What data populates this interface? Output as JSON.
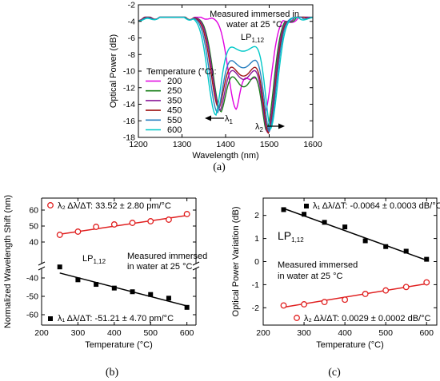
{
  "panels": [
    {
      "id": "a",
      "label": "(a)"
    },
    {
      "id": "b",
      "label": "(b)"
    },
    {
      "id": "c",
      "label": "(c)"
    }
  ],
  "chart_data": [
    {
      "id": "a",
      "type": "line",
      "xlabel": "Wavelength (nm)",
      "ylabel": "Optical Power (dB)",
      "xlim": [
        1200,
        1600
      ],
      "ylim": [
        -18,
        -2
      ],
      "xticks": [
        1200,
        1300,
        1400,
        1500,
        1600
      ],
      "yticks": [
        -2,
        -4,
        -6,
        -8,
        -10,
        -12,
        -14,
        -16,
        -18
      ],
      "legend_title": "Temperature (°C):",
      "legend_placement": "left",
      "annotations": {
        "measure_1": "Measured immersed in",
        "measure_2": "water at 25 °C",
        "mode": "LP",
        "mode_sub": "1,12",
        "lambda1": "λ",
        "lambda1_sub": "1",
        "lambda2": "λ",
        "lambda2_sub": "2"
      },
      "series": [
        {
          "name": "200",
          "color": "#e000e0",
          "dip1": [
            1425,
            -14.6
          ],
          "peak": [
            1455,
            -11.0
          ],
          "dip2": [
            1488,
            -15.2
          ],
          "bands": [
            [
              1220,
              -3.1
            ],
            [
              1265,
              -2.9
            ],
            [
              1300,
              -3.3
            ],
            [
              1335,
              -3.0
            ],
            [
              1580,
              -2.5
            ]
          ]
        },
        {
          "name": "250",
          "color": "#1a7f1a",
          "dip1": [
            1390,
            -14.9
          ],
          "peak": [
            1430,
            -11.9
          ],
          "dip2": [
            1493,
            -17.2
          ],
          "bands": [
            [
              1220,
              -3.0
            ],
            [
              1265,
              -3.0
            ],
            [
              1300,
              -3.2
            ],
            [
              1335,
              -3.1
            ],
            [
              1575,
              -2.5
            ]
          ]
        },
        {
          "name": "350",
          "color": "#8a1a9a",
          "dip1": [
            1388,
            -14.7
          ],
          "peak": [
            1440,
            -11.0
          ],
          "dip2": [
            1495,
            -17.4
          ],
          "bands": [
            [
              1220,
              -3.0
            ],
            [
              1265,
              -2.9
            ],
            [
              1300,
              -3.3
            ],
            [
              1335,
              -3.0
            ],
            [
              1570,
              -2.6
            ]
          ]
        },
        {
          "name": "450",
          "color": "#a01818",
          "dip1": [
            1385,
            -14.5
          ],
          "peak": [
            1442,
            -10.6
          ],
          "dip2": [
            1497,
            -17.5
          ],
          "bands": [
            [
              1220,
              -3.1
            ],
            [
              1265,
              -2.9
            ],
            [
              1300,
              -3.2
            ],
            [
              1335,
              -3.0
            ],
            [
              1565,
              -2.6
            ]
          ]
        },
        {
          "name": "550",
          "color": "#2a80c0",
          "dip1": [
            1382,
            -15.0
          ],
          "peak": [
            1448,
            -9.6
          ],
          "dip2": [
            1499,
            -17.3
          ],
          "bands": [
            [
              1220,
              -3.2
            ],
            [
              1265,
              -3.0
            ],
            [
              1300,
              -3.3
            ],
            [
              1335,
              -3.1
            ],
            [
              1560,
              -2.6
            ]
          ]
        },
        {
          "name": "600",
          "color": "#00c8c8",
          "dip1": [
            1378,
            -15.3
          ],
          "peak": [
            1452,
            -7.6
          ],
          "dip2": [
            1502,
            -17.0
          ],
          "bands": [
            [
              1220,
              -3.3
            ],
            [
              1265,
              -3.0
            ],
            [
              1300,
              -3.4
            ],
            [
              1335,
              -3.1
            ],
            [
              1555,
              -2.7
            ]
          ]
        }
      ]
    },
    {
      "id": "b",
      "type": "scatter",
      "xlabel": "Temperature (°C)",
      "ylabel": "Normalized Wavelength Shift (nm)",
      "xlim": [
        200,
        625
      ],
      "xticks": [
        200,
        300,
        400,
        500,
        600
      ],
      "ylim_upper": [
        40,
        65
      ],
      "yticks_upper": [
        40,
        50,
        60
      ],
      "ylim_lower": [
        -60,
        -30
      ],
      "yticks_lower": [
        -60,
        -50,
        -40
      ],
      "annotations": {
        "mode": "LP",
        "mode_sub": "1,12",
        "measure_1": "Measured immersed",
        "measure_2": "in water at 25 °C"
      },
      "series": [
        {
          "name": "λ₂ Δλ/ΔT: 33.52 ± 2.80 pm/°C",
          "legend_placement": "top-left",
          "marker": "circle-open",
          "color": "#e02020",
          "x": [
            250,
            300,
            350,
            400,
            450,
            500,
            550,
            600
          ],
          "y": [
            44.5,
            46.5,
            49.5,
            51,
            52,
            53,
            54,
            57.5
          ],
          "fit": {
            "slope": 0.03352,
            "intercept": 36.5
          }
        },
        {
          "name": "λ₁ Δλ/ΔT: -51.21 ± 4.70 pm/°C",
          "legend_placement": "bottom-left",
          "marker": "square-filled",
          "color": "#000000",
          "x": [
            250,
            300,
            350,
            400,
            450,
            500,
            550,
            600
          ],
          "y": [
            -34,
            -41,
            -43.5,
            -45.5,
            -47.5,
            -49,
            -51,
            -56
          ],
          "fit": {
            "slope": -0.05121,
            "intercept": -24.5
          }
        }
      ]
    },
    {
      "id": "c",
      "type": "scatter",
      "xlabel": "Temperature (°C)",
      "ylabel": "Optical Power Variation (dB)",
      "xlim": [
        200,
        625
      ],
      "xticks": [
        200,
        300,
        400,
        500,
        600
      ],
      "ylim": [
        -2.75,
        2.75
      ],
      "yticks": [
        -2,
        -1,
        0,
        1,
        2
      ],
      "annotations": {
        "mode": "LP",
        "mode_sub": "1,12",
        "measure_1": "Measured immersed",
        "measure_2": "in water at 25 °C"
      },
      "series": [
        {
          "name": "λ₁ Δλ/ΔT: -0.0064 ± 0.0003 dB/°C",
          "legend_placement": "top-right",
          "marker": "square-filled",
          "color": "#000000",
          "x": [
            250,
            300,
            350,
            400,
            450,
            500,
            550,
            600
          ],
          "y": [
            2.25,
            2.05,
            1.7,
            1.5,
            0.9,
            0.65,
            0.45,
            0.1
          ],
          "fit": {
            "slope": -0.0064,
            "intercept": 3.9
          }
        },
        {
          "name": "λ₂ Δλ/ΔT: 0.0029 ± 0.0002 dB/°C",
          "legend_placement": "bottom-right",
          "marker": "circle-open",
          "color": "#e02020",
          "x": [
            250,
            300,
            350,
            400,
            450,
            500,
            550,
            600
          ],
          "y": [
            -1.9,
            -1.85,
            -1.75,
            -1.65,
            -1.4,
            -1.25,
            -1.1,
            -0.9
          ],
          "fit": {
            "slope": 0.0029,
            "intercept": -2.7
          }
        }
      ]
    }
  ]
}
